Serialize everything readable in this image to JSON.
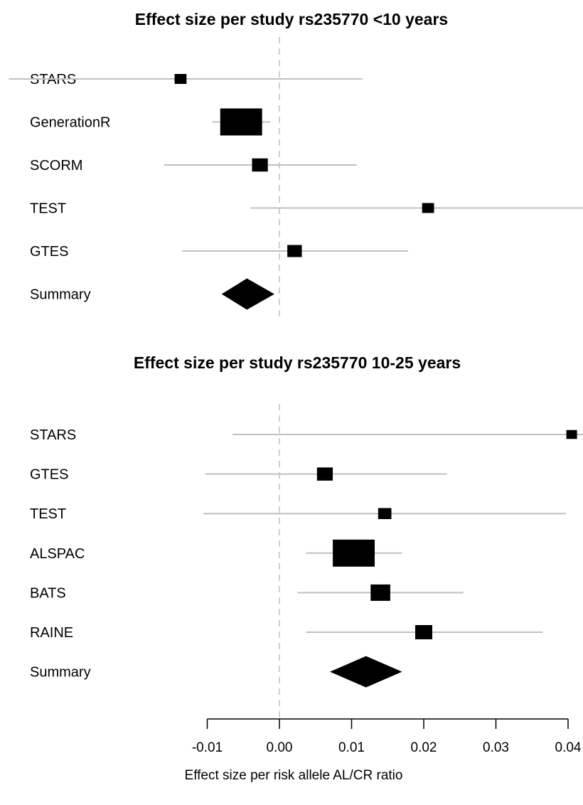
{
  "chart_data": [
    {
      "type": "forest",
      "title": "Effect size per study rs235770 <10 years",
      "studies": [
        {
          "label": "STARS",
          "estimate": -0.0137,
          "ci": [
            -0.0375,
            0.0115
          ],
          "weight": 0.2
        },
        {
          "label": "GenerationR",
          "estimate": -0.0053,
          "ci": [
            -0.0093,
            -0.0013
          ],
          "weight": 1.0
        },
        {
          "label": "SCORM",
          "estimate": -0.0027,
          "ci": [
            -0.016,
            0.0107
          ],
          "weight": 0.35
        },
        {
          "label": "TEST",
          "estimate": 0.0206,
          "ci": [
            -0.004,
            0.0425
          ],
          "weight": 0.2
        },
        {
          "label": "GTES",
          "estimate": 0.0021,
          "ci": [
            -0.0135,
            0.0178
          ],
          "weight": 0.3
        }
      ],
      "summary": {
        "label": "Summary",
        "estimate": -0.0045,
        "ci": [
          -0.008,
          -0.0007
        ]
      }
    },
    {
      "type": "forest",
      "title": "Effect size per study rs235770 10-25 years",
      "studies": [
        {
          "label": "STARS",
          "estimate": 0.0405,
          "ci": [
            -0.0065,
            0.0425
          ],
          "weight": 0.15
        },
        {
          "label": "GTES",
          "estimate": 0.0063,
          "ci": [
            -0.0103,
            0.0232
          ],
          "weight": 0.35
        },
        {
          "label": "TEST",
          "estimate": 0.0146,
          "ci": [
            -0.0105,
            0.0397
          ],
          "weight": 0.25
        },
        {
          "label": "ALSPAC",
          "estimate": 0.0103,
          "ci": [
            0.0037,
            0.017
          ],
          "weight": 1.0
        },
        {
          "label": "BATS",
          "estimate": 0.014,
          "ci": [
            0.0025,
            0.0255
          ],
          "weight": 0.5
        },
        {
          "label": "RAINE",
          "estimate": 0.02,
          "ci": [
            0.0037,
            0.0365
          ],
          "weight": 0.4
        }
      ],
      "summary": {
        "label": "Summary",
        "estimate": 0.012,
        "ci": [
          0.007,
          0.017
        ]
      }
    }
  ],
  "axis": {
    "xlabel": "Effect size per risk allele AL/CR ratio",
    "ticks": [
      -0.01,
      0.0,
      0.01,
      0.02,
      0.03,
      0.04
    ],
    "tick_labels": [
      "-0.01",
      "0.00",
      "0.01",
      "0.02",
      "0.03",
      "0.04"
    ],
    "reference_line": 0.0
  },
  "colors": {
    "ci_line": "#c0c0c0",
    "marker": "#000000",
    "reference_line": "#d0d0d0"
  }
}
